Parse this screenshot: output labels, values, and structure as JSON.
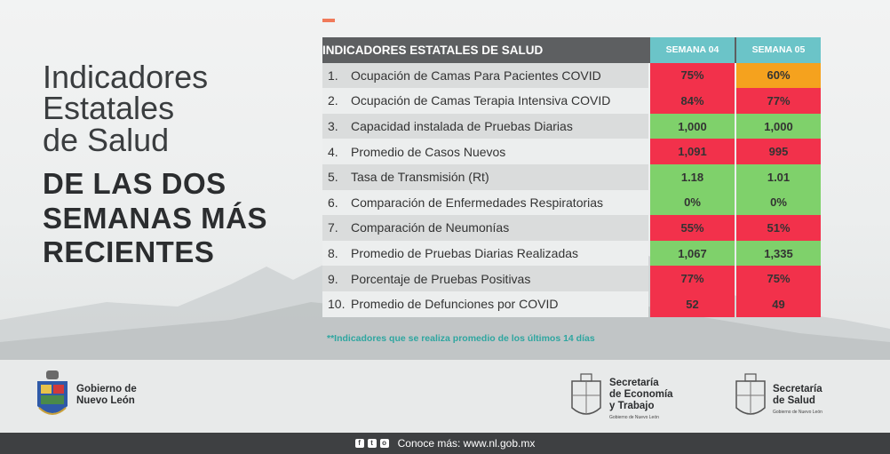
{
  "heading": {
    "light_lines": [
      "Indicadores",
      "Estatales",
      "de Salud"
    ],
    "bold_lines": [
      "DE LAS DOS",
      "SEMANAS MÁS",
      "RECIENTES"
    ]
  },
  "table": {
    "title": "INDICADORES ESTATALES DE SALUD",
    "weeks": [
      "SEMANA 04",
      "SEMANA 05"
    ],
    "rows": [
      {
        "n": "1.",
        "label": "Ocupación de Camas Para Pacientes COVID",
        "w4": "75%",
        "w5": "60%",
        "c4": "red",
        "c5": "orange"
      },
      {
        "n": "2.",
        "label": "Ocupación de Camas Terapia Intensiva COVID",
        "w4": "84%",
        "w5": "77%",
        "c4": "red",
        "c5": "red"
      },
      {
        "n": "3.",
        "label": "Capacidad instalada de Pruebas Diarias",
        "w4": "1,000",
        "w5": "1,000",
        "c4": "green",
        "c5": "green"
      },
      {
        "n": "4.",
        "label": "Promedio de Casos Nuevos",
        "w4": "1,091",
        "w5": "995",
        "c4": "red",
        "c5": "red"
      },
      {
        "n": "5.",
        "label": "Tasa de Transmisión (Rt)",
        "w4": "1.18",
        "w5": "1.01",
        "c4": "green",
        "c5": "green"
      },
      {
        "n": "6.",
        "label": "Comparación de Enfermedades Respiratorias",
        "w4": "0%",
        "w5": "0%",
        "c4": "green",
        "c5": "green"
      },
      {
        "n": "7.",
        "label": "Comparación de Neumonías",
        "w4": "55%",
        "w5": "51%",
        "c4": "red",
        "c5": "red"
      },
      {
        "n": "8.",
        "label": "Promedio de Pruebas Diarias Realizadas",
        "w4": "1,067",
        "w5": "1,335",
        "c4": "green",
        "c5": "green"
      },
      {
        "n": "9.",
        "label": "Porcentaje de Pruebas Positivas",
        "w4": "77%",
        "w5": "75%",
        "c4": "red",
        "c5": "red"
      },
      {
        "n": "10.",
        "label": "Promedio de Defunciones por COVID",
        "w4": "52",
        "w5": "49",
        "c4": "red",
        "c5": "red"
      }
    ]
  },
  "note": "**Indicadores que se realiza promedio de los últimos 14 días",
  "footer": {
    "gob_line1": "Gobierno de",
    "gob_line2": "Nuevo León",
    "eco_line1": "Secretaría",
    "eco_line2": "de Economía",
    "eco_line3": "y Trabajo",
    "eco_sub": "Gobierno de Nuevo León",
    "sal_line1": "Secretaría",
    "sal_line2": "de Salud",
    "sal_sub": "Gobierno de Nuevo León",
    "conoce": "Conoce más: www.nl.gob.mx",
    "social_icons": [
      "facebook-icon",
      "twitter-icon",
      "instagram-icon"
    ]
  },
  "colors": {
    "red": "#f2314b",
    "green": "#7fd16b",
    "orange": "#f5a21e",
    "teal": "#6bc4c8"
  }
}
